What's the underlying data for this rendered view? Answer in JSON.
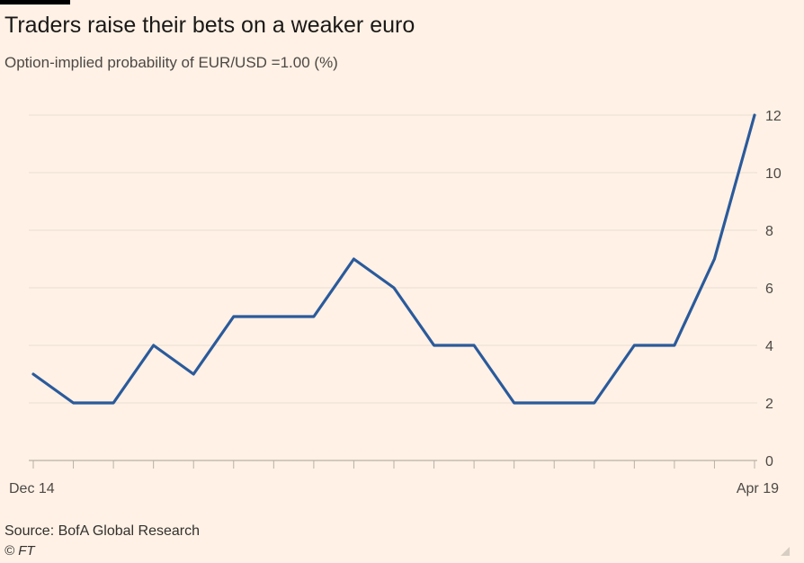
{
  "header": {
    "title": "Traders raise their bets on a weaker euro",
    "subtitle": "Option-implied probability of EUR/USD =1.00 (%)"
  },
  "footer": {
    "source": "Source: BofA Global Research",
    "copyright": "© FT"
  },
  "colors": {
    "background": "#fff1e5",
    "line": "#2a5a9b",
    "grid": "#e9dfd5",
    "axis": "#b9b0a8"
  },
  "chart_data": {
    "type": "line",
    "title": "Traders raise their bets on a weaker euro",
    "subtitle": "Option-implied probability of EUR/USD =1.00 (%)",
    "xlabel": "",
    "ylabel": "%",
    "ylim": [
      0,
      12
    ],
    "yticks": [
      "0",
      "2",
      "4",
      "6",
      "8",
      "10",
      "12"
    ],
    "x_tick_labels": {
      "first": "Dec 14",
      "last": "Apr 19"
    },
    "grid": true,
    "y_axis_side": "right",
    "series": [
      {
        "name": "Option-implied probability",
        "values": [
          3,
          2,
          2,
          4,
          3,
          5,
          5,
          5,
          7,
          6,
          4,
          4,
          2,
          2,
          2,
          4,
          4,
          7,
          12
        ]
      }
    ]
  }
}
